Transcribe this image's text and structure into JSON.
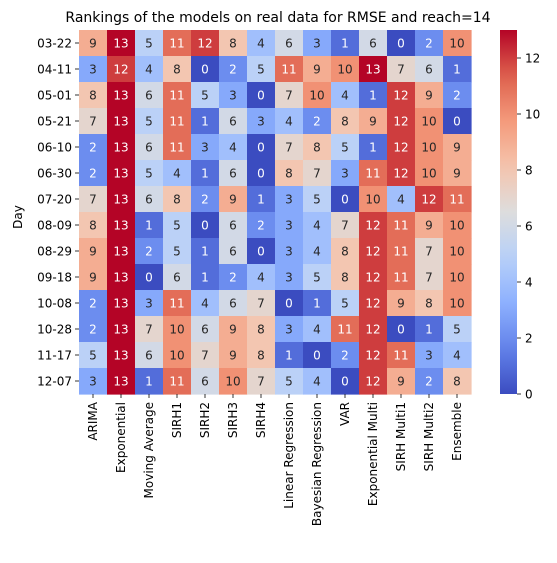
{
  "chart_data": {
    "type": "heatmap",
    "title": "Rankings of the models on real data for RMSE and reach=14",
    "xlabel": "",
    "ylabel": "Day",
    "x_categories": [
      "ARIMA",
      "Exponential",
      "Moving Average",
      "SIRH1",
      "SIRH2",
      "SIRH3",
      "SIRH4",
      "Linear Regression",
      "Bayesian Regression",
      "VAR",
      "Exponential Multi",
      "SIRH Multi1",
      "SIRH Multi2",
      "Ensemble"
    ],
    "y_categories": [
      "03-22",
      "04-11",
      "05-01",
      "05-21",
      "06-10",
      "06-30",
      "07-20",
      "08-09",
      "08-29",
      "09-18",
      "10-08",
      "10-28",
      "11-17",
      "12-07"
    ],
    "values": [
      [
        9,
        13,
        5,
        11,
        12,
        8,
        4,
        6,
        3,
        1,
        6,
        0,
        2,
        10
      ],
      [
        3,
        12,
        4,
        8,
        0,
        2,
        5,
        11,
        9,
        10,
        13,
        7,
        6,
        1
      ],
      [
        8,
        13,
        6,
        11,
        5,
        3,
        0,
        7,
        10,
        4,
        1,
        12,
        9,
        2
      ],
      [
        7,
        13,
        5,
        11,
        1,
        6,
        3,
        4,
        2,
        8,
        9,
        12,
        10,
        0
      ],
      [
        2,
        13,
        6,
        11,
        3,
        4,
        0,
        7,
        8,
        5,
        1,
        12,
        10,
        9
      ],
      [
        2,
        13,
        5,
        4,
        1,
        6,
        0,
        8,
        7,
        3,
        11,
        12,
        10,
        9
      ],
      [
        7,
        13,
        6,
        8,
        2,
        9,
        1,
        3,
        5,
        0,
        10,
        4,
        12,
        11
      ],
      [
        8,
        13,
        1,
        5,
        0,
        6,
        2,
        3,
        4,
        7,
        12,
        11,
        9,
        10
      ],
      [
        9,
        13,
        2,
        5,
        1,
        6,
        0,
        3,
        4,
        8,
        12,
        11,
        7,
        10
      ],
      [
        9,
        13,
        0,
        6,
        1,
        2,
        4,
        3,
        5,
        8,
        12,
        11,
        7,
        10
      ],
      [
        2,
        13,
        3,
        11,
        4,
        6,
        7,
        0,
        1,
        5,
        12,
        9,
        8,
        10
      ],
      [
        2,
        13,
        7,
        10,
        6,
        9,
        8,
        3,
        4,
        11,
        12,
        0,
        1,
        5
      ],
      [
        5,
        13,
        6,
        10,
        7,
        9,
        8,
        1,
        0,
        2,
        12,
        11,
        3,
        4
      ],
      [
        3,
        13,
        1,
        11,
        6,
        10,
        7,
        5,
        4,
        0,
        12,
        9,
        2,
        8
      ]
    ],
    "colormap": "coolwarm",
    "vmin": 0,
    "vmax": 13,
    "colorbar_ticks": [
      0,
      2,
      4,
      6,
      8,
      10,
      12
    ],
    "annotated": true,
    "grid": false,
    "legend": "colorbar-right"
  }
}
